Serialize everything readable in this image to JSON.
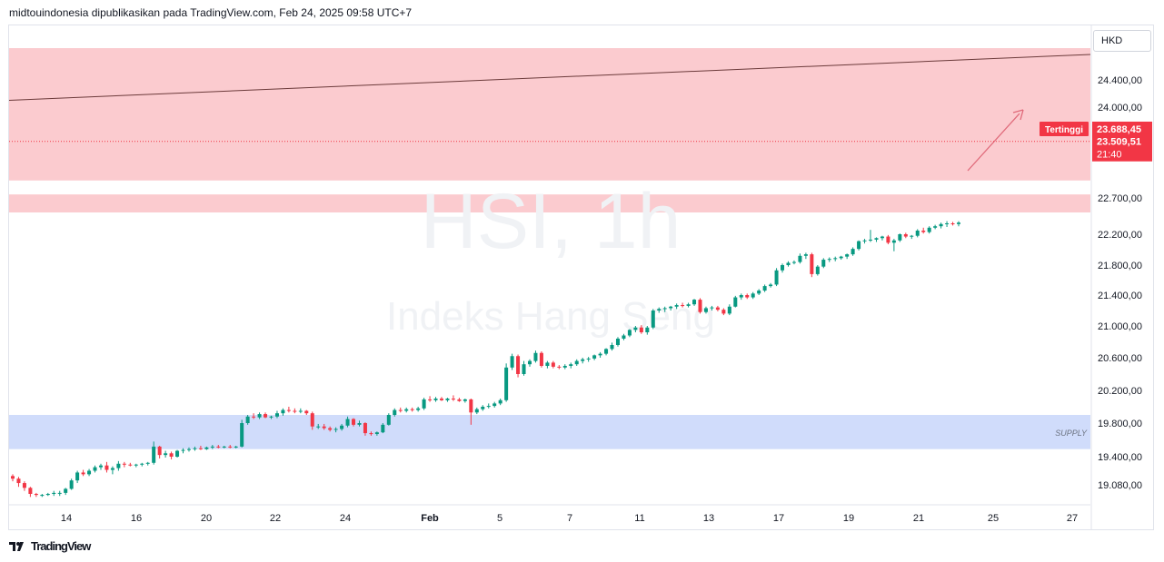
{
  "header": {
    "text": "midtouindonesia dipublikasikan pada TradingView.com, Feb 24, 2025 09:58 UTC+7"
  },
  "footer": {
    "brand": "TradingView",
    "logo": "tradingview-logo-icon"
  },
  "watermark": {
    "symbol": "HSI, 1h",
    "name": "Indeks Hang Seng"
  },
  "axis": {
    "currency": "HKD"
  },
  "colors": {
    "up": "#089981",
    "down": "#f23645",
    "resistance_zone": "#f8a1a8",
    "supply_zone": "#a9bff7",
    "trend": "#6b3a3a",
    "arrow": "#e06a7a",
    "last_price": "#f23645"
  },
  "chart_data": {
    "type": "candlestick",
    "title": "HSI, 1h",
    "subtitle": "Indeks Hang Seng",
    "ylabel": "HKD",
    "ylim": [
      18900,
      24800
    ],
    "y_ticks": [
      "24.400,00",
      "24.000,00",
      "22.700,00",
      "22.200,00",
      "21.800,00",
      "21.400,00",
      "21.000,00",
      "20.600,00",
      "20.200,00",
      "19.800,00",
      "19.400,00",
      "19.080,00"
    ],
    "x_ticks": [
      "14",
      "16",
      "20",
      "22",
      "24",
      "Feb",
      "5",
      "7",
      "11",
      "13",
      "17",
      "19",
      "21",
      "25",
      "27"
    ],
    "grid": false,
    "ohlc": [
      [
        19180,
        19200,
        19120,
        19150
      ],
      [
        19150,
        19170,
        19060,
        19100
      ],
      [
        19100,
        19120,
        19020,
        19050
      ],
      [
        19050,
        19060,
        18960,
        18990
      ],
      [
        18990,
        19000,
        18960,
        18980
      ],
      [
        18980,
        18990,
        18960,
        18980
      ],
      [
        18980,
        19000,
        18970,
        18990
      ],
      [
        18990,
        19020,
        18970,
        19000
      ],
      [
        19000,
        19020,
        18970,
        19000
      ],
      [
        19000,
        19050,
        18980,
        19040
      ],
      [
        19040,
        19150,
        19030,
        19130
      ],
      [
        19130,
        19240,
        19100,
        19220
      ],
      [
        19220,
        19250,
        19180,
        19200
      ],
      [
        19200,
        19260,
        19180,
        19240
      ],
      [
        19240,
        19300,
        19220,
        19280
      ],
      [
        19280,
        19320,
        19250,
        19300
      ],
      [
        19300,
        19340,
        19220,
        19250
      ],
      [
        19250,
        19290,
        19200,
        19270
      ],
      [
        19270,
        19350,
        19240,
        19320
      ],
      [
        19320,
        19340,
        19280,
        19310
      ],
      [
        19310,
        19330,
        19290,
        19300
      ],
      [
        19300,
        19320,
        19280,
        19310
      ],
      [
        19310,
        19330,
        19290,
        19320
      ],
      [
        19320,
        19340,
        19300,
        19330
      ],
      [
        19330,
        19580,
        19310,
        19520
      ],
      [
        19520,
        19530,
        19380,
        19420
      ],
      [
        19420,
        19470,
        19390,
        19440
      ],
      [
        19440,
        19460,
        19370,
        19400
      ],
      [
        19400,
        19480,
        19390,
        19470
      ],
      [
        19470,
        19500,
        19440,
        19480
      ],
      [
        19480,
        19510,
        19460,
        19490
      ],
      [
        19490,
        19520,
        19470,
        19500
      ],
      [
        19500,
        19530,
        19480,
        19490
      ],
      [
        19490,
        19520,
        19480,
        19510
      ],
      [
        19510,
        19540,
        19490,
        19520
      ],
      [
        19520,
        19540,
        19500,
        19510
      ],
      [
        19510,
        19530,
        19500,
        19520
      ],
      [
        19520,
        19540,
        19500,
        19510
      ],
      [
        19510,
        19530,
        19500,
        19520
      ],
      [
        19520,
        19840,
        19510,
        19800
      ],
      [
        19800,
        19900,
        19780,
        19880
      ],
      [
        19880,
        19920,
        19850,
        19870
      ],
      [
        19870,
        19930,
        19850,
        19910
      ],
      [
        19910,
        19930,
        19860,
        19870
      ],
      [
        19870,
        19890,
        19850,
        19880
      ],
      [
        19880,
        19950,
        19860,
        19920
      ],
      [
        19920,
        19980,
        19890,
        19960
      ],
      [
        19960,
        20000,
        19930,
        19950
      ],
      [
        19950,
        19980,
        19920,
        19940
      ],
      [
        19940,
        19980,
        19920,
        19950
      ],
      [
        19950,
        19960,
        19900,
        19920
      ],
      [
        19920,
        19940,
        19720,
        19760
      ],
      [
        19760,
        19790,
        19730,
        19760
      ],
      [
        19760,
        19790,
        19720,
        19740
      ],
      [
        19740,
        19760,
        19700,
        19720
      ],
      [
        19720,
        19750,
        19690,
        19730
      ],
      [
        19730,
        19790,
        19710,
        19770
      ],
      [
        19770,
        19880,
        19750,
        19850
      ],
      [
        19850,
        19860,
        19760,
        19780
      ],
      [
        19780,
        19830,
        19760,
        19800
      ],
      [
        19800,
        19810,
        19650,
        19680
      ],
      [
        19680,
        19700,
        19650,
        19670
      ],
      [
        19670,
        19700,
        19650,
        19690
      ],
      [
        19690,
        19800,
        19680,
        19780
      ],
      [
        19780,
        19920,
        19770,
        19900
      ],
      [
        19900,
        19980,
        19880,
        19960
      ],
      [
        19960,
        19990,
        19930,
        19950
      ],
      [
        19950,
        19990,
        19930,
        19970
      ],
      [
        19970,
        19990,
        19940,
        19960
      ],
      [
        19960,
        20000,
        19940,
        19980
      ],
      [
        19980,
        20110,
        19960,
        20090
      ],
      [
        20090,
        20130,
        20060,
        20080
      ],
      [
        20080,
        20120,
        20060,
        20100
      ],
      [
        20100,
        20120,
        20070,
        20080
      ],
      [
        20080,
        20110,
        20060,
        20100
      ],
      [
        20100,
        20140,
        20070,
        20090
      ],
      [
        20090,
        20110,
        20060,
        20070
      ],
      [
        20070,
        20100,
        20050,
        20090
      ],
      [
        20090,
        20100,
        19780,
        19930
      ],
      [
        19930,
        19990,
        19910,
        19970
      ],
      [
        19970,
        20020,
        19950,
        20000
      ],
      [
        20000,
        20040,
        19980,
        20010
      ],
      [
        20010,
        20060,
        19990,
        20040
      ],
      [
        20040,
        20100,
        20020,
        20080
      ],
      [
        20080,
        20530,
        20060,
        20480
      ],
      [
        20480,
        20650,
        20450,
        20620
      ],
      [
        20620,
        20640,
        20360,
        20400
      ],
      [
        20400,
        20560,
        20380,
        20520
      ],
      [
        20520,
        20580,
        20490,
        20560
      ],
      [
        20560,
        20690,
        20540,
        20660
      ],
      [
        20660,
        20680,
        20480,
        20500
      ],
      [
        20500,
        20560,
        20470,
        20540
      ],
      [
        20540,
        20560,
        20470,
        20490
      ],
      [
        20490,
        20510,
        20460,
        20480
      ],
      [
        20480,
        20520,
        20460,
        20500
      ],
      [
        20500,
        20540,
        20470,
        20520
      ],
      [
        20520,
        20580,
        20500,
        20560
      ],
      [
        20560,
        20600,
        20530,
        20580
      ],
      [
        20580,
        20610,
        20550,
        20590
      ],
      [
        20590,
        20640,
        20570,
        20630
      ],
      [
        20630,
        20670,
        20600,
        20650
      ],
      [
        20650,
        20720,
        20630,
        20710
      ],
      [
        20710,
        20790,
        20690,
        20760
      ],
      [
        20760,
        20860,
        20740,
        20840
      ],
      [
        20840,
        20900,
        20820,
        20880
      ],
      [
        20880,
        20960,
        20860,
        20950
      ],
      [
        20950,
        21000,
        20920,
        20980
      ],
      [
        20980,
        21010,
        20900,
        20920
      ],
      [
        20920,
        21000,
        20890,
        20980
      ],
      [
        20980,
        21220,
        20960,
        21200
      ],
      [
        21200,
        21240,
        21170,
        21220
      ],
      [
        21220,
        21250,
        21180,
        21230
      ],
      [
        21230,
        21260,
        21200,
        21250
      ],
      [
        21250,
        21290,
        21220,
        21270
      ],
      [
        21270,
        21300,
        21240,
        21260
      ],
      [
        21260,
        21300,
        21240,
        21280
      ],
      [
        21280,
        21350,
        21260,
        21340
      ],
      [
        21340,
        21360,
        21160,
        21180
      ],
      [
        21180,
        21250,
        21160,
        21230
      ],
      [
        21230,
        21260,
        21200,
        21240
      ],
      [
        21240,
        21260,
        21190,
        21210
      ],
      [
        21210,
        21230,
        21140,
        21160
      ],
      [
        21160,
        21280,
        21140,
        21250
      ],
      [
        21250,
        21390,
        21240,
        21370
      ],
      [
        21370,
        21420,
        21340,
        21400
      ],
      [
        21400,
        21420,
        21350,
        21370
      ],
      [
        21370,
        21440,
        21350,
        21420
      ],
      [
        21420,
        21480,
        21400,
        21460
      ],
      [
        21460,
        21540,
        21440,
        21520
      ],
      [
        21520,
        21560,
        21500,
        21540
      ],
      [
        21540,
        21760,
        21520,
        21730
      ],
      [
        21730,
        21820,
        21700,
        21800
      ],
      [
        21800,
        21850,
        21780,
        21830
      ],
      [
        21830,
        21860,
        21810,
        21840
      ],
      [
        21840,
        21950,
        21820,
        21920
      ],
      [
        21920,
        21960,
        21880,
        21940
      ],
      [
        21940,
        21960,
        21640,
        21680
      ],
      [
        21680,
        21800,
        21660,
        21780
      ],
      [
        21780,
        21890,
        21760,
        21870
      ],
      [
        21870,
        21900,
        21840,
        21880
      ],
      [
        21880,
        21910,
        21850,
        21890
      ],
      [
        21890,
        21920,
        21870,
        21910
      ],
      [
        21910,
        21950,
        21880,
        21940
      ],
      [
        21940,
        22030,
        21920,
        22010
      ],
      [
        22010,
        22120,
        21990,
        22110
      ],
      [
        22110,
        22140,
        22080,
        22120
      ],
      [
        22120,
        22260,
        22100,
        22130
      ],
      [
        22130,
        22160,
        22100,
        22150
      ],
      [
        22150,
        22180,
        22120,
        22170
      ],
      [
        22170,
        22190,
        22070,
        22090
      ],
      [
        22090,
        22140,
        21980,
        22120
      ],
      [
        22120,
        22210,
        22100,
        22200
      ],
      [
        22200,
        22220,
        22150,
        22170
      ],
      [
        22170,
        22190,
        22140,
        22180
      ],
      [
        22180,
        22270,
        22160,
        22250
      ],
      [
        22250,
        22290,
        22210,
        22230
      ],
      [
        22230,
        22310,
        22210,
        22290
      ],
      [
        22290,
        22330,
        22270,
        22310
      ],
      [
        22310,
        22360,
        22280,
        22340
      ],
      [
        22340,
        22380,
        22300,
        22350
      ],
      [
        22350,
        22370,
        22320,
        22340
      ],
      [
        22340,
        22380,
        22310,
        22360
      ]
    ],
    "zones": [
      {
        "type": "resistance",
        "range": [
          22950,
          24800
        ]
      },
      {
        "type": "resistance",
        "range": [
          22500,
          22750
        ]
      },
      {
        "type": "supply",
        "label": "SUPPLY",
        "range": [
          19490,
          19900
        ]
      }
    ],
    "trendline": {
      "from": 24100,
      "to": 24720
    },
    "high_label": {
      "text": "Tertinggi",
      "value_text": "23.688,45",
      "value": 23688.45
    },
    "last_price": {
      "value_text": "23.509,51",
      "value": 23509.51,
      "countdown": "21:40"
    }
  }
}
